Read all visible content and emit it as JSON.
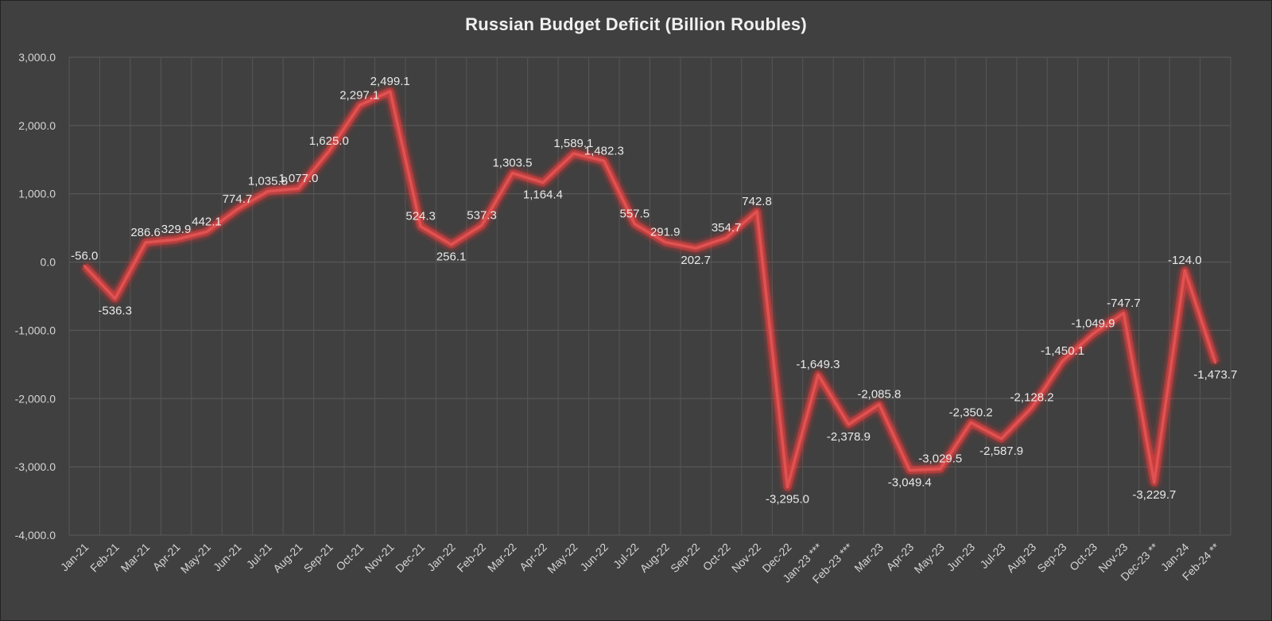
{
  "chart_data": {
    "type": "line",
    "title": "Russian Budget Deficit (Billion Roubles)",
    "xlabel": "",
    "ylabel": "",
    "ylim": [
      -4000,
      3000
    ],
    "yticks": [
      "3,000.0",
      "2,000.0",
      "1,000.0",
      "0.0",
      "-1,000.0",
      "-2,000.0",
      "-3,000.0",
      "-4,000.0"
    ],
    "ytick_values": [
      3000,
      2000,
      1000,
      0,
      -1000,
      -2000,
      -3000,
      -4000
    ],
    "grid": true,
    "legend": "none",
    "line_color": "#e05252",
    "glow_color": "#ff4040",
    "categories": [
      "Jan-21",
      "Feb-21",
      "Mar-21",
      "Apr-21",
      "May-21",
      "Jun-21",
      "Jul-21",
      "Aug-21",
      "Sep-21",
      "Oct-21",
      "Nov-21",
      "Dec-21",
      "Jan-22",
      "Feb-22",
      "Mar-22",
      "Apr-22",
      "May-22",
      "Jun-22",
      "Jul-22",
      "Aug-22",
      "Sep-22",
      "Oct-22",
      "Nov-22",
      "Dec-22",
      "Jan-23 ***",
      "Feb-23 ***",
      "Mar-23",
      "Apr-23",
      "May-23",
      "Jun-23",
      "Jul-23",
      "Aug-23",
      "Sep-23",
      "Oct-23",
      "Nov-23",
      "Dec-23 **",
      "Jan-24",
      "Feb-24 **"
    ],
    "values": [
      -56.0,
      -536.3,
      286.6,
      329.9,
      442.1,
      774.7,
      1035.8,
      1077.0,
      1625.0,
      2297.1,
      2499.1,
      524.3,
      256.1,
      537.3,
      1303.5,
      1164.4,
      1589.1,
      1482.3,
      557.5,
      291.9,
      202.7,
      354.7,
      742.8,
      -3295.0,
      -1649.3,
      -2378.9,
      -2085.8,
      -3049.4,
      -3029.5,
      -2350.2,
      -2587.9,
      -2128.2,
      -1450.1,
      -1049.9,
      -747.7,
      -3229.7,
      -124.0,
      -1473.7
    ],
    "data_labels": [
      "-56.0",
      "-536.3",
      "286.6",
      "329.9",
      "442.1",
      "774.7",
      "1,035.8",
      "1,077.0",
      "1,625.0",
      "2,297.1",
      "2,499.1",
      "524.3",
      "256.1",
      "537.3",
      "1,303.5",
      "1,164.4",
      "1,589.1",
      "1,482.3",
      "557.5",
      "291.9",
      "202.7",
      "354.7",
      "742.8",
      "-3,295.0",
      "-1,649.3",
      "-2,378.9",
      "-2,085.8",
      "-3,049.4",
      "-3,029.5",
      "-2,350.2",
      "-2,587.9",
      "-2,128.2",
      "-1,450.1",
      "-1,049.9",
      "-747.7",
      "-3,229.7",
      "-124.0",
      "-1,473.7"
    ]
  }
}
